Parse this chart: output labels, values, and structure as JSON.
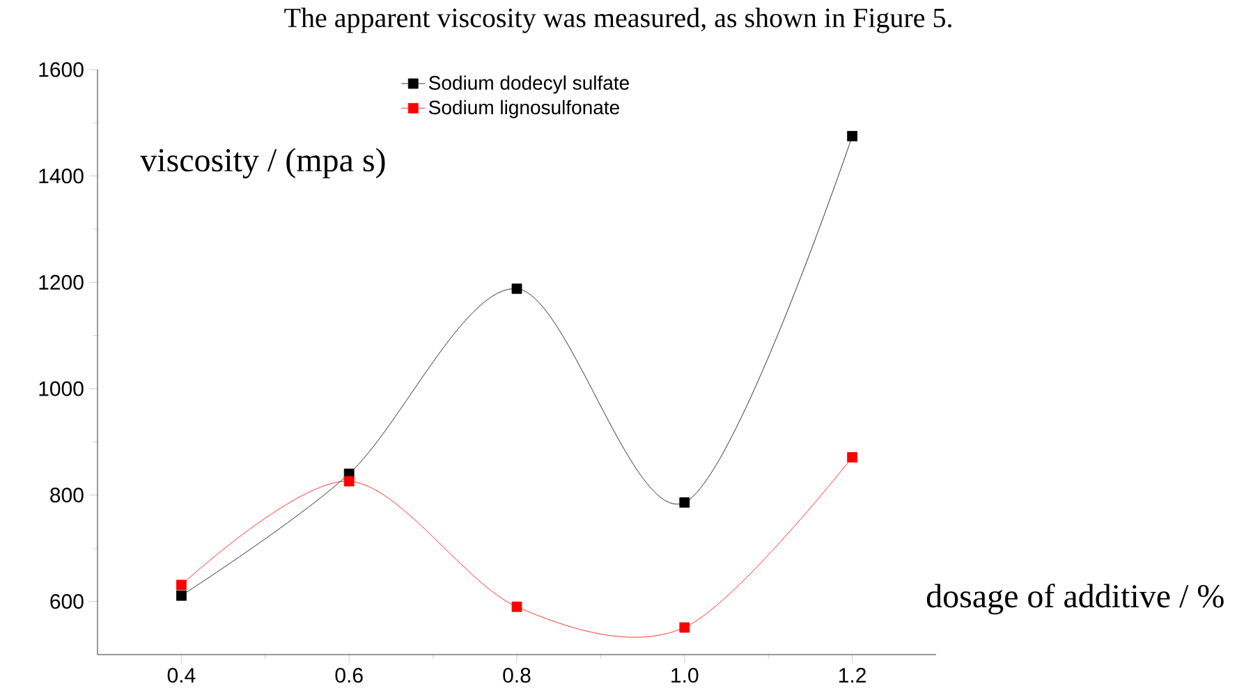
{
  "chart_data": {
    "type": "line",
    "xlabel": "dosage of additive / %",
    "ylabel": "viscosity / (mpa s)",
    "annotations": [
      "The apparent viscosity was measured, as shown in Figure 5."
    ],
    "x": [
      0.4,
      0.6,
      0.8,
      1.0,
      1.2
    ],
    "series": [
      {
        "name": "Sodium dodecyl sulfate",
        "color": "#000000",
        "values": [
          611,
          840,
          1188,
          786,
          1475
        ]
      },
      {
        "name": "Sodium lignosulfonate",
        "color": "#ff0000",
        "values": [
          631,
          826,
          590,
          551,
          871
        ]
      }
    ],
    "xlim": [
      0.3,
      1.3
    ],
    "ylim": [
      500,
      1600
    ],
    "xticks": [
      0.4,
      0.6,
      0.8,
      {
        "value": 1.0,
        "label": "1.0"
      },
      1.2
    ],
    "yticks": [
      600,
      800,
      1000,
      1200,
      1400,
      1600
    ],
    "legend": "top",
    "marker": "square",
    "line_style": "solid",
    "grid": false
  }
}
